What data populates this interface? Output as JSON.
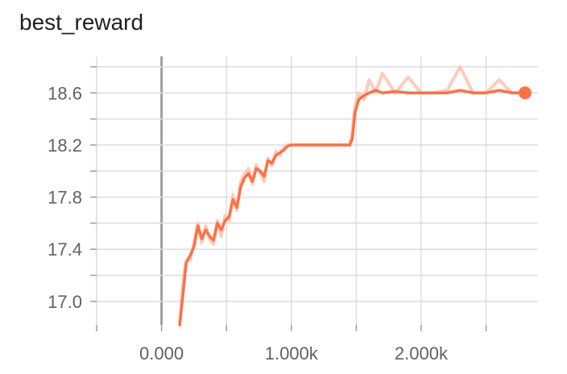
{
  "chart_data": {
    "type": "line",
    "title": "best_reward",
    "xlabel": "",
    "ylabel": "",
    "xlim": [
      -500,
      2900
    ],
    "ylim": [
      16.82,
      18.88
    ],
    "x_ticks": [
      0,
      1000,
      2000
    ],
    "x_tick_labels": [
      "0.000",
      "1.000k",
      "2.000k"
    ],
    "y_ticks": [
      17.0,
      17.4,
      17.8,
      18.2,
      18.6
    ],
    "y_tick_labels": [
      "17.0",
      "17.4",
      "17.8",
      "18.2",
      "18.6"
    ],
    "grid": true,
    "smoothed_color": "#ff7043",
    "raw_color": "#ffcbbb",
    "series": [
      {
        "x": [
          140,
          170,
          190,
          220,
          250,
          280,
          310,
          340,
          370,
          400,
          430,
          460,
          490,
          520,
          550,
          580,
          610,
          640,
          670,
          700,
          730,
          760,
          790,
          820,
          850,
          880,
          910,
          940,
          970,
          1000,
          1100,
          1200,
          1300,
          1400,
          1450,
          1470,
          1490,
          1520,
          1560,
          1600,
          1650,
          1700,
          1800,
          1900,
          2000,
          2100,
          2200,
          2300,
          2400,
          2500,
          2600,
          2700,
          2800
        ],
        "smoothed": [
          16.82,
          17.1,
          17.3,
          17.35,
          17.42,
          17.58,
          17.48,
          17.55,
          17.5,
          17.47,
          17.6,
          17.55,
          17.62,
          17.65,
          17.78,
          17.72,
          17.88,
          17.95,
          17.98,
          17.92,
          18.02,
          18.0,
          17.96,
          18.08,
          18.06,
          18.12,
          18.14,
          18.16,
          18.19,
          18.2,
          18.2,
          18.2,
          18.2,
          18.2,
          18.2,
          18.25,
          18.45,
          18.55,
          18.58,
          18.6,
          18.62,
          18.6,
          18.61,
          18.6,
          18.6,
          18.6,
          18.6,
          18.62,
          18.6,
          18.6,
          18.62,
          18.6,
          18.6
        ],
        "raw": [
          16.82,
          17.2,
          17.3,
          17.32,
          17.45,
          17.6,
          17.45,
          17.58,
          17.48,
          17.44,
          17.62,
          17.5,
          17.66,
          17.62,
          17.82,
          17.7,
          17.92,
          17.98,
          18.02,
          17.9,
          18.05,
          17.98,
          17.92,
          18.1,
          18.04,
          18.15,
          18.12,
          18.18,
          18.2,
          18.2,
          18.2,
          18.2,
          18.2,
          18.2,
          18.2,
          18.3,
          18.5,
          18.6,
          18.55,
          18.7,
          18.6,
          18.75,
          18.6,
          18.72,
          18.6,
          18.6,
          18.62,
          18.8,
          18.6,
          18.6,
          18.7,
          18.6,
          18.6
        ]
      }
    ]
  }
}
